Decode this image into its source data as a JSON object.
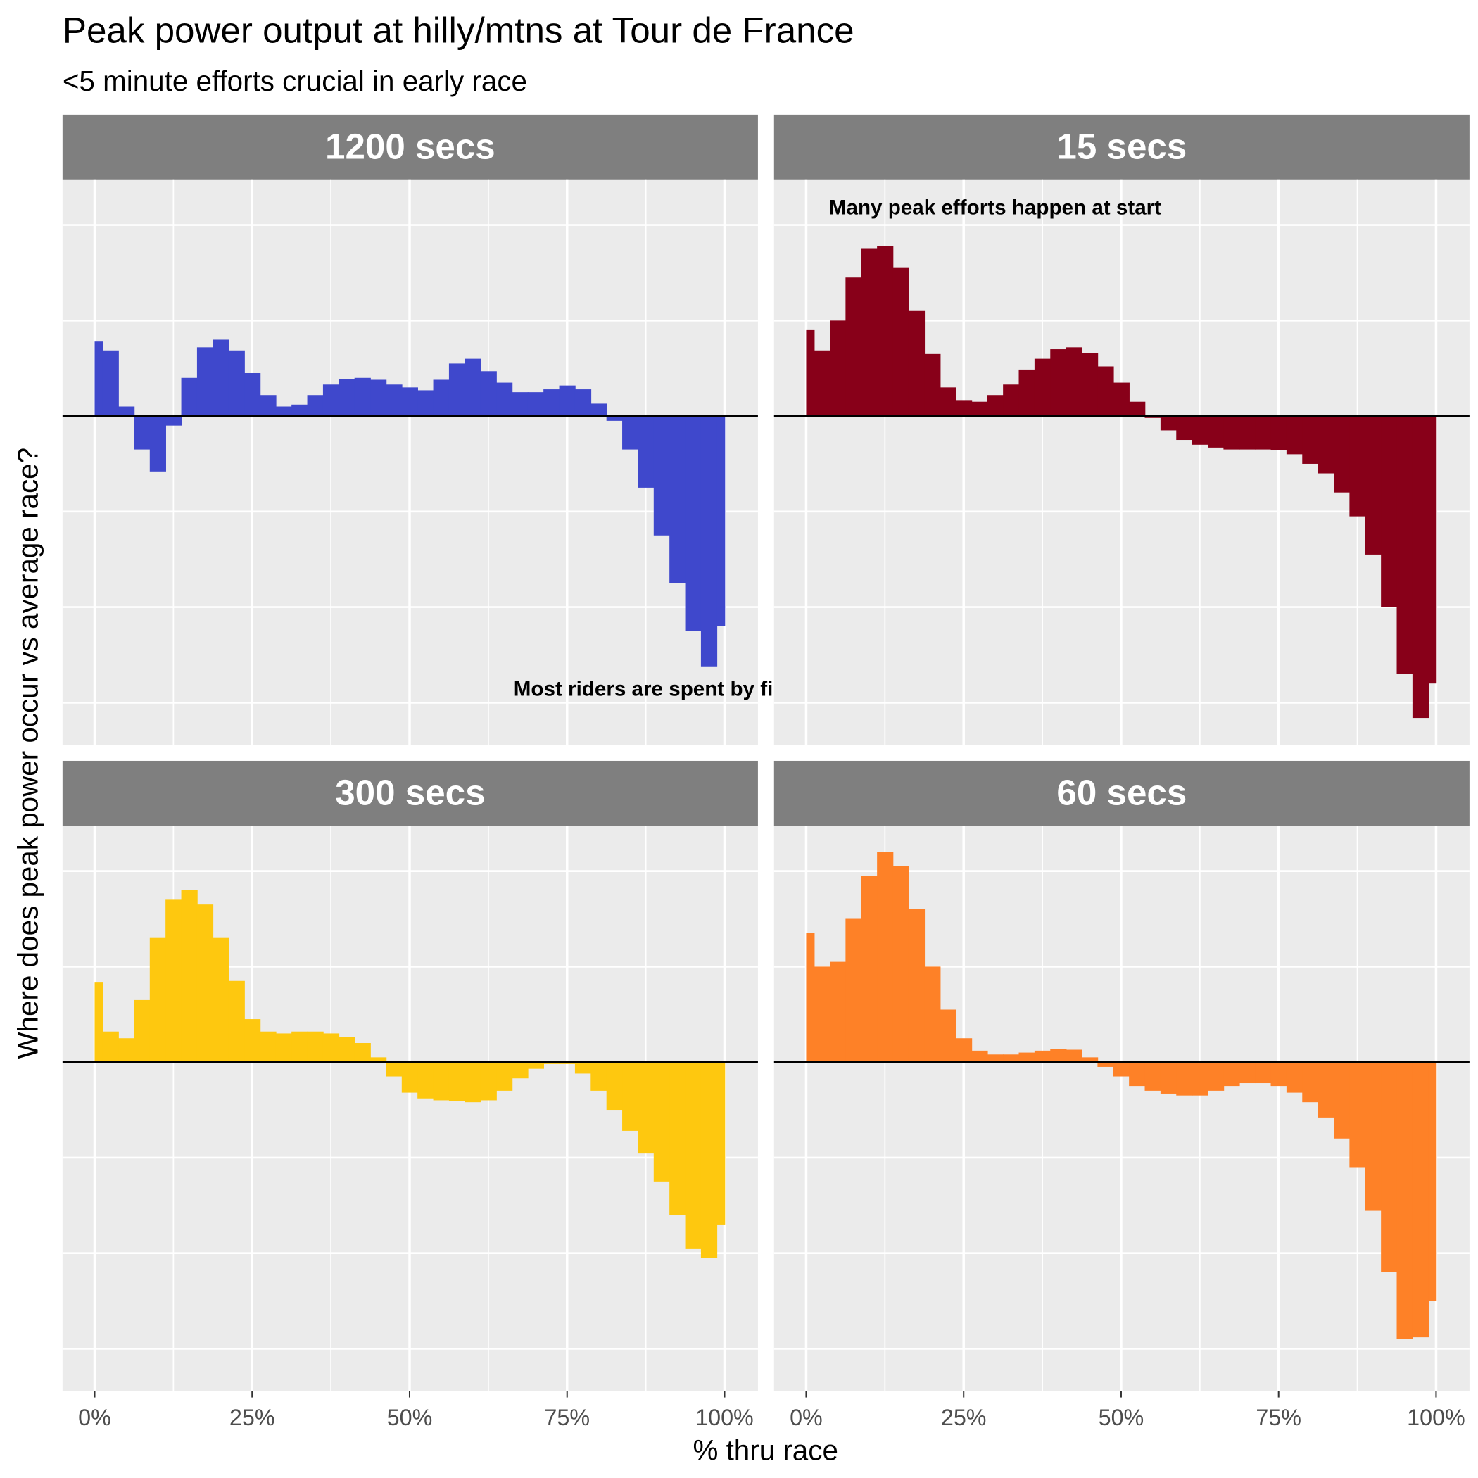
{
  "title": "Peak power output at hilly/mtns at Tour de France",
  "subtitle": "<5 minute efforts crucial in early race",
  "x_label": "% thru race",
  "y_label": "Where does peak power occur vs average race?",
  "chart_data": [
    {
      "type": "area",
      "panel_title": "1200 secs",
      "color": "#3f48cc",
      "grid": true,
      "hline": 0,
      "xlim": [
        -0.051,
        1.053
      ],
      "ylim": [
        -3.44,
        2.47
      ],
      "xticks": [
        0,
        0.25,
        0.5,
        0.75,
        1
      ],
      "yticks": [
        -3,
        -2,
        -1,
        0,
        1,
        2
      ],
      "x": [
        0,
        0.025,
        0.05,
        0.075,
        0.1,
        0.125,
        0.15,
        0.175,
        0.2,
        0.225,
        0.25,
        0.275,
        0.3,
        0.325,
        0.35,
        0.375,
        0.4,
        0.425,
        0.45,
        0.475,
        0.5,
        0.525,
        0.55,
        0.575,
        0.6,
        0.625,
        0.65,
        0.675,
        0.7,
        0.725,
        0.75,
        0.775,
        0.8,
        0.825,
        0.85,
        0.875,
        0.9,
        0.925,
        0.95,
        0.975,
        1
      ],
      "values": [
        0.78,
        0.68,
        0.1,
        -0.35,
        -0.58,
        -0.1,
        0.4,
        0.72,
        0.8,
        0.68,
        0.45,
        0.22,
        0.1,
        0.12,
        0.22,
        0.33,
        0.39,
        0.4,
        0.38,
        0.33,
        0.3,
        0.27,
        0.38,
        0.55,
        0.6,
        0.47,
        0.35,
        0.25,
        0.25,
        0.28,
        0.32,
        0.28,
        0.13,
        -0.05,
        -0.35,
        -0.75,
        -1.25,
        -1.75,
        -2.25,
        -2.62,
        -2.2
      ],
      "annotations": [
        {
          "text": "Most riders are spent by finish",
          "x": 0.905,
          "y": -2.87
        }
      ]
    },
    {
      "type": "area",
      "panel_title": "15 secs",
      "color": "#880019",
      "grid": true,
      "hline": 0,
      "xlim": [
        -0.051,
        1.053
      ],
      "ylim": [
        -3.44,
        2.47
      ],
      "xticks": [
        0,
        0.25,
        0.5,
        0.75,
        1
      ],
      "yticks": [
        -3,
        -2,
        -1,
        0,
        1,
        2
      ],
      "x": [
        0,
        0.025,
        0.05,
        0.075,
        0.1,
        0.125,
        0.15,
        0.175,
        0.2,
        0.225,
        0.25,
        0.275,
        0.3,
        0.325,
        0.35,
        0.375,
        0.4,
        0.425,
        0.45,
        0.475,
        0.5,
        0.525,
        0.55,
        0.575,
        0.6,
        0.625,
        0.65,
        0.675,
        0.7,
        0.725,
        0.75,
        0.775,
        0.8,
        0.825,
        0.85,
        0.875,
        0.9,
        0.925,
        0.95,
        0.975,
        1
      ],
      "values": [
        0.9,
        0.68,
        1.0,
        1.45,
        1.75,
        1.78,
        1.55,
        1.1,
        0.65,
        0.3,
        0.16,
        0.15,
        0.22,
        0.33,
        0.48,
        0.6,
        0.7,
        0.72,
        0.66,
        0.52,
        0.35,
        0.15,
        -0.02,
        -0.15,
        -0.25,
        -0.3,
        -0.33,
        -0.35,
        -0.35,
        -0.35,
        -0.36,
        -0.4,
        -0.5,
        -0.6,
        -0.8,
        -1.05,
        -1.45,
        -2.0,
        -2.7,
        -3.16,
        -2.8
      ],
      "annotations": [
        {
          "text": "Many peak efforts happen at start",
          "x": 0.3,
          "y": 2.17
        }
      ]
    },
    {
      "type": "area",
      "panel_title": "300 secs",
      "color": "#fec80f",
      "grid": true,
      "hline": 0,
      "xlim": [
        -0.051,
        1.053
      ],
      "ylim": [
        -3.44,
        2.47
      ],
      "xticks": [
        {
          "value": 0,
          "label": "0%"
        },
        {
          "value": 0.25,
          "label": "25%"
        },
        {
          "value": 0.5,
          "label": "50%"
        },
        {
          "value": 0.75,
          "label": "75%"
        },
        {
          "value": 1,
          "label": "100%"
        }
      ],
      "yticks": [
        -3,
        -2,
        -1,
        0,
        1,
        2
      ],
      "x": [
        0,
        0.025,
        0.05,
        0.075,
        0.1,
        0.125,
        0.15,
        0.175,
        0.2,
        0.225,
        0.25,
        0.275,
        0.3,
        0.325,
        0.35,
        0.375,
        0.4,
        0.425,
        0.45,
        0.475,
        0.5,
        0.525,
        0.55,
        0.575,
        0.6,
        0.625,
        0.65,
        0.675,
        0.7,
        0.725,
        0.75,
        0.775,
        0.8,
        0.825,
        0.85,
        0.875,
        0.9,
        0.925,
        0.95,
        0.975,
        1
      ],
      "values": [
        0.84,
        0.32,
        0.25,
        0.65,
        1.3,
        1.7,
        1.8,
        1.65,
        1.3,
        0.85,
        0.45,
        0.32,
        0.3,
        0.32,
        0.32,
        0.3,
        0.26,
        0.2,
        0.05,
        -0.15,
        -0.32,
        -0.38,
        -0.4,
        -0.41,
        -0.42,
        -0.4,
        -0.3,
        -0.17,
        -0.07,
        -0.02,
        -0.02,
        -0.12,
        -0.3,
        -0.5,
        -0.72,
        -0.95,
        -1.25,
        -1.6,
        -1.95,
        -2.05,
        -1.7
      ]
    },
    {
      "type": "area",
      "panel_title": "60 secs",
      "color": "#fe8127",
      "grid": true,
      "hline": 0,
      "xlim": [
        -0.051,
        1.053
      ],
      "ylim": [
        -3.44,
        2.47
      ],
      "xticks": [
        {
          "value": 0,
          "label": "0%"
        },
        {
          "value": 0.25,
          "label": "25%"
        },
        {
          "value": 0.5,
          "label": "50%"
        },
        {
          "value": 0.75,
          "label": "75%"
        },
        {
          "value": 1,
          "label": "100%"
        }
      ],
      "yticks": [
        -3,
        -2,
        -1,
        0,
        1,
        2
      ],
      "x": [
        0,
        0.025,
        0.05,
        0.075,
        0.1,
        0.125,
        0.15,
        0.175,
        0.2,
        0.225,
        0.25,
        0.275,
        0.3,
        0.325,
        0.35,
        0.375,
        0.4,
        0.425,
        0.45,
        0.475,
        0.5,
        0.525,
        0.55,
        0.575,
        0.6,
        0.625,
        0.65,
        0.675,
        0.7,
        0.725,
        0.75,
        0.775,
        0.8,
        0.825,
        0.85,
        0.875,
        0.9,
        0.925,
        0.95,
        0.975,
        1
      ],
      "values": [
        1.35,
        1.0,
        1.05,
        1.5,
        1.95,
        2.2,
        2.05,
        1.6,
        1.0,
        0.55,
        0.25,
        0.12,
        0.08,
        0.08,
        0.1,
        0.12,
        0.14,
        0.13,
        0.05,
        -0.05,
        -0.15,
        -0.25,
        -0.3,
        -0.33,
        -0.35,
        -0.35,
        -0.3,
        -0.25,
        -0.22,
        -0.22,
        -0.25,
        -0.32,
        -0.42,
        -0.58,
        -0.8,
        -1.1,
        -1.55,
        -2.2,
        -2.9,
        -2.88,
        -2.5
      ]
    }
  ]
}
